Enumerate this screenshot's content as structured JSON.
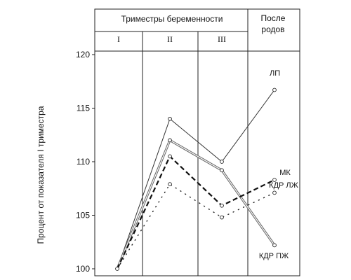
{
  "chart_data": {
    "type": "line",
    "header": {
      "group_title": "Триместры беременности",
      "trimesters": [
        "I",
        "II",
        "III"
      ],
      "postpartum": [
        "После",
        "родов"
      ]
    },
    "ylabel": "Процент от показателя I триместра",
    "ylim": [
      100,
      122
    ],
    "yticks": [
      100,
      105,
      110,
      115,
      120
    ],
    "grid": false,
    "x_positions": [
      "I",
      "II",
      "III",
      "После родов"
    ],
    "series": [
      {
        "name": "ЛП",
        "style": "solid-thin",
        "values": [
          100,
          114,
          110,
          116.7
        ]
      },
      {
        "name": "КДР ПЖ",
        "style": "double",
        "values": [
          100,
          112,
          109.2,
          102.2
        ]
      },
      {
        "name": "МК",
        "style": "dashed-bold",
        "values": [
          100,
          110.5,
          105.9,
          108.3
        ]
      },
      {
        "name": "КДР ЛЖ",
        "style": "dotted",
        "values": [
          100,
          107.9,
          104.8,
          107.1
        ]
      }
    ]
  }
}
